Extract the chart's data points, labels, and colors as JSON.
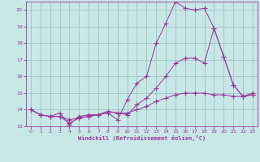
{
  "xlabel": "Windchill (Refroidissement éolien,°C)",
  "xlim": [
    -0.5,
    23.5
  ],
  "ylim": [
    13,
    20.5
  ],
  "yticks": [
    13,
    14,
    15,
    16,
    17,
    18,
    19,
    20
  ],
  "xticks": [
    0,
    1,
    2,
    3,
    4,
    5,
    6,
    7,
    8,
    9,
    10,
    11,
    12,
    13,
    14,
    15,
    16,
    17,
    18,
    19,
    20,
    21,
    22,
    23
  ],
  "bg_color": "#c8e8e8",
  "line_color": "#993399",
  "grid_color": "#9bbcbc",
  "series": [
    {
      "x": [
        0,
        1,
        2,
        3,
        4,
        5,
        6,
        7,
        8,
        9,
        10,
        11,
        12,
        13,
        14,
        15,
        16,
        17,
        18,
        19,
        20,
        21,
        22,
        23
      ],
      "y": [
        14.0,
        13.7,
        13.6,
        13.8,
        13.1,
        13.6,
        13.7,
        13.7,
        13.8,
        13.4,
        14.6,
        15.6,
        16.0,
        18.0,
        19.2,
        20.5,
        20.1,
        20.0,
        20.1,
        18.9,
        17.2,
        15.5,
        14.8,
        15.0
      ]
    },
    {
      "x": [
        0,
        1,
        2,
        3,
        4,
        5,
        6,
        7,
        8,
        9,
        10,
        11,
        12,
        13,
        14,
        15,
        16,
        17,
        18,
        19,
        20,
        21,
        22,
        23
      ],
      "y": [
        14.0,
        13.7,
        13.6,
        13.6,
        13.2,
        13.5,
        13.6,
        13.7,
        13.9,
        13.8,
        13.7,
        14.3,
        14.7,
        15.3,
        16.0,
        16.8,
        17.1,
        17.1,
        16.8,
        18.9,
        17.2,
        15.5,
        14.8,
        14.9
      ]
    },
    {
      "x": [
        0,
        1,
        2,
        3,
        4,
        5,
        6,
        7,
        8,
        9,
        10,
        11,
        12,
        13,
        14,
        15,
        16,
        17,
        18,
        19,
        20,
        21,
        22,
        23
      ],
      "y": [
        14.0,
        13.7,
        13.6,
        13.6,
        13.4,
        13.5,
        13.6,
        13.7,
        13.9,
        13.8,
        13.8,
        14.0,
        14.2,
        14.5,
        14.7,
        14.9,
        15.0,
        15.0,
        15.0,
        14.9,
        14.9,
        14.8,
        14.8,
        14.9
      ]
    }
  ]
}
